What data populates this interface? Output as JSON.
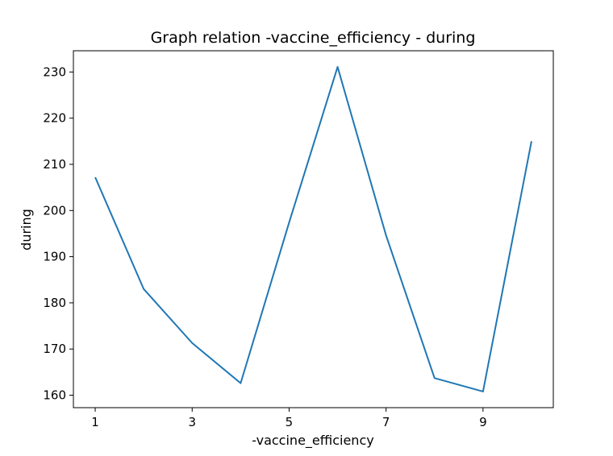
{
  "chart_data": {
    "type": "line",
    "title": "Graph relation -vaccine_efficiency - during",
    "xlabel": "-vaccine_efficiency",
    "ylabel": "during",
    "x": [
      1,
      2,
      3,
      4,
      5,
      6,
      7,
      8,
      9,
      10
    ],
    "series": [
      {
        "values": [
          207.2,
          183.0,
          171.3,
          162.6,
          197.4,
          231.1,
          194.6,
          163.7,
          160.8,
          215.0
        ],
        "color": "#1f77b4"
      }
    ],
    "xticks": [
      1,
      3,
      5,
      7,
      9
    ],
    "yticks": [
      160,
      170,
      180,
      190,
      200,
      210,
      220,
      230
    ],
    "xlim": [
      0.55,
      10.45
    ],
    "ylim": [
      157.3,
      234.6
    ],
    "grid": false,
    "legend": "none"
  }
}
